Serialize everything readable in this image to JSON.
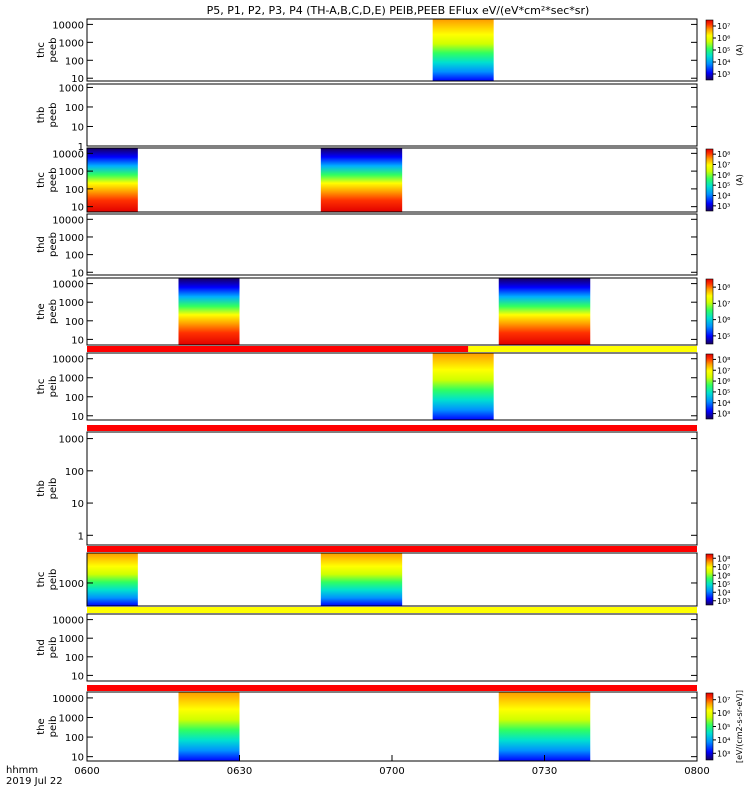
{
  "chart_data": {
    "type": "heatmap",
    "title": "P5, P1, P2, P3, P4 (TH-A,B,C,D,E) PEIB,PEEB EFlux eV/(eV*cm²*sec*sr)",
    "x_label_corner": [
      "hhmm",
      "2019 Jul 22"
    ],
    "x_range": [
      "0600",
      "0800"
    ],
    "x_ticks": [
      "0600",
      "0630",
      "0700",
      "0730",
      "0800"
    ],
    "panels": [
      {
        "probe": "thc",
        "species": "peeb",
        "y_log": true,
        "y_range": [
          7,
          20000
        ],
        "y_ticks": [
          "10",
          "100",
          "1000",
          "10000"
        ],
        "bands": [],
        "blocks": [
          {
            "start": "0708",
            "end": "0720"
          }
        ],
        "palette": "ion",
        "colorbar": {
          "ticks": [
            "10³",
            "10⁴",
            "10⁵",
            "10⁶",
            "10⁷"
          ],
          "units": "(A)"
        }
      },
      {
        "probe": "thb",
        "species": "peeb",
        "y_log": true,
        "y_range": [
          1,
          1500
        ],
        "y_ticks": [
          "1",
          "10",
          "100",
          "1000"
        ],
        "bands": [],
        "blocks": [],
        "palette": "none",
        "colorbar": null
      },
      {
        "probe": "thc",
        "species": "peeb",
        "y_log": true,
        "y_range": [
          5,
          20000
        ],
        "y_ticks": [
          "10",
          "100",
          "1000",
          "10000"
        ],
        "bands": [],
        "blocks": [
          {
            "start": "0600",
            "end": "0610"
          },
          {
            "start": "0646",
            "end": "0702"
          }
        ],
        "palette": "elec",
        "colorbar": {
          "ticks": [
            "10³",
            "10⁴",
            "10⁵",
            "10⁶",
            "10⁷",
            "10⁸"
          ],
          "units": "(A)"
        }
      },
      {
        "probe": "thd",
        "species": "peeb",
        "y_log": true,
        "y_range": [
          7,
          20000
        ],
        "y_ticks": [
          "10",
          "100",
          "1000",
          "10000"
        ],
        "bands": [],
        "blocks": [],
        "palette": "none",
        "colorbar": null
      },
      {
        "probe": "the",
        "species": "peeb",
        "y_log": true,
        "y_range": [
          5,
          20000
        ],
        "y_ticks": [
          "10",
          "100",
          "1000",
          "10000"
        ],
        "bands": [],
        "blocks": [
          {
            "start": "0618",
            "end": "0630"
          },
          {
            "start": "0721",
            "end": "0739"
          }
        ],
        "palette": "elec",
        "colorbar": {
          "ticks": [
            "10⁵",
            "10⁶",
            "10⁷",
            "10⁸"
          ],
          "units": ""
        }
      },
      {
        "probe": "thc",
        "species": "peib",
        "y_log": true,
        "y_range": [
          6,
          20000
        ],
        "y_ticks": [
          "10",
          "100",
          "1000",
          "10000"
        ],
        "bands": [
          {
            "start": "0600",
            "end": "0715",
            "color": "#ff0000"
          },
          {
            "start": "0715",
            "end": "0800",
            "color": "#ffff00"
          }
        ],
        "blocks": [
          {
            "start": "0708",
            "end": "0720"
          }
        ],
        "palette": "ion",
        "colorbar": {
          "ticks": [
            "10³",
            "10⁴",
            "10⁵",
            "10⁶",
            "10⁷",
            "10⁸"
          ],
          "units": ""
        }
      },
      {
        "probe": "thb",
        "species": "peib",
        "y_log": true,
        "y_range": [
          0.5,
          1600
        ],
        "y_ticks": [
          "1",
          "10",
          "100",
          "1000"
        ],
        "bands": [
          {
            "start": "0600",
            "end": "0800",
            "color": "#ff0000"
          }
        ],
        "blocks": [],
        "palette": "none",
        "colorbar": null
      },
      {
        "probe": "thc",
        "species": "peib",
        "y_log": true,
        "y_range": [
          100,
          20000
        ],
        "y_ticks": [
          "1000"
        ],
        "bands": [
          {
            "start": "0600",
            "end": "0800",
            "color": "#ff0000"
          }
        ],
        "blocks": [
          {
            "start": "0600",
            "end": "0610"
          },
          {
            "start": "0646",
            "end": "0702"
          }
        ],
        "palette": "ion",
        "colorbar": {
          "ticks": [
            "10³",
            "10⁴",
            "10⁵",
            "10⁶",
            "10⁷",
            "10⁸"
          ],
          "units": ""
        }
      },
      {
        "probe": "thd",
        "species": "peib",
        "y_log": true,
        "y_range": [
          5,
          20000
        ],
        "y_ticks": [
          "10",
          "100",
          "1000",
          "10000"
        ],
        "bands": [
          {
            "start": "0600",
            "end": "0800",
            "color": "#ffff00"
          }
        ],
        "blocks": [],
        "palette": "none",
        "colorbar": null
      },
      {
        "probe": "the",
        "species": "peib",
        "y_log": true,
        "y_range": [
          6,
          20000
        ],
        "y_ticks": [
          "10",
          "100",
          "1000",
          "10000"
        ],
        "bands": [
          {
            "start": "0600",
            "end": "0800",
            "color": "#ff0000"
          }
        ],
        "blocks": [
          {
            "start": "0618",
            "end": "0630"
          },
          {
            "start": "0721",
            "end": "0739"
          }
        ],
        "palette": "ion",
        "colorbar": {
          "ticks": [
            "10³",
            "10⁴",
            "10⁵",
            "10⁶",
            "10⁷"
          ],
          "units": "[eV/(cm2-s-sr-eV)]"
        }
      }
    ],
    "colors": {
      "ion_top": "#ff9a00",
      "elec_low": "#e00000",
      "palette": [
        "#180060",
        "#0000ff",
        "#0090ff",
        "#00e0d0",
        "#30ff60",
        "#d0ff00",
        "#ffff00",
        "#ffa000",
        "#ff3000",
        "#e00000"
      ]
    }
  }
}
